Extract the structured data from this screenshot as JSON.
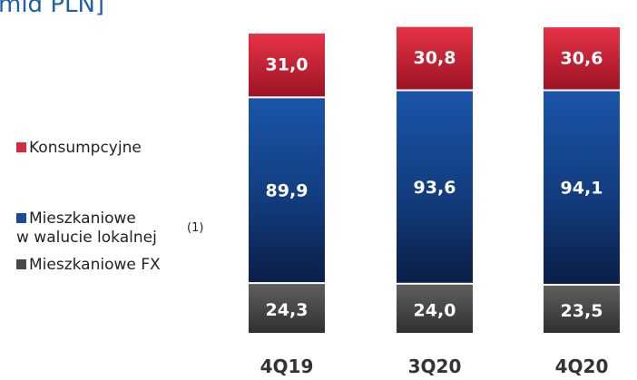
{
  "chart_data": {
    "type": "bar",
    "stacked": true,
    "title": "mld PLN]",
    "categories": [
      "4Q19",
      "3Q20",
      "4Q20"
    ],
    "series": [
      {
        "name": "Mieszkaniowe FX",
        "values": [
          24.3,
          24.0,
          23.5
        ],
        "value_labels": [
          "24,3",
          "24,0",
          "23,5"
        ],
        "color": "#4a4a4a"
      },
      {
        "name": "Mieszkaniowe w walucie lokalnej",
        "values": [
          89.9,
          93.6,
          94.1
        ],
        "value_labels": [
          "89,9",
          "93,6",
          "94,1"
        ],
        "color": "#1a4b9a"
      },
      {
        "name": "Konsumpcyjne",
        "values": [
          31.0,
          30.8,
          30.6
        ],
        "value_labels": [
          "31,0",
          "30,8",
          "30,6"
        ],
        "color": "#d52b3c"
      }
    ],
    "legend": {
      "position": "left",
      "items": [
        {
          "label": "Konsumpcyjne",
          "color": "#d52b3c"
        },
        {
          "label_line1": "Mieszkaniowe",
          "label_line2": "w walucie lokalnej",
          "footnote": "(1)",
          "color": "#1a4b9a"
        },
        {
          "label": "Mieszkaniowe FX",
          "color": "#4a4a4a"
        }
      ]
    },
    "grid": false
  }
}
